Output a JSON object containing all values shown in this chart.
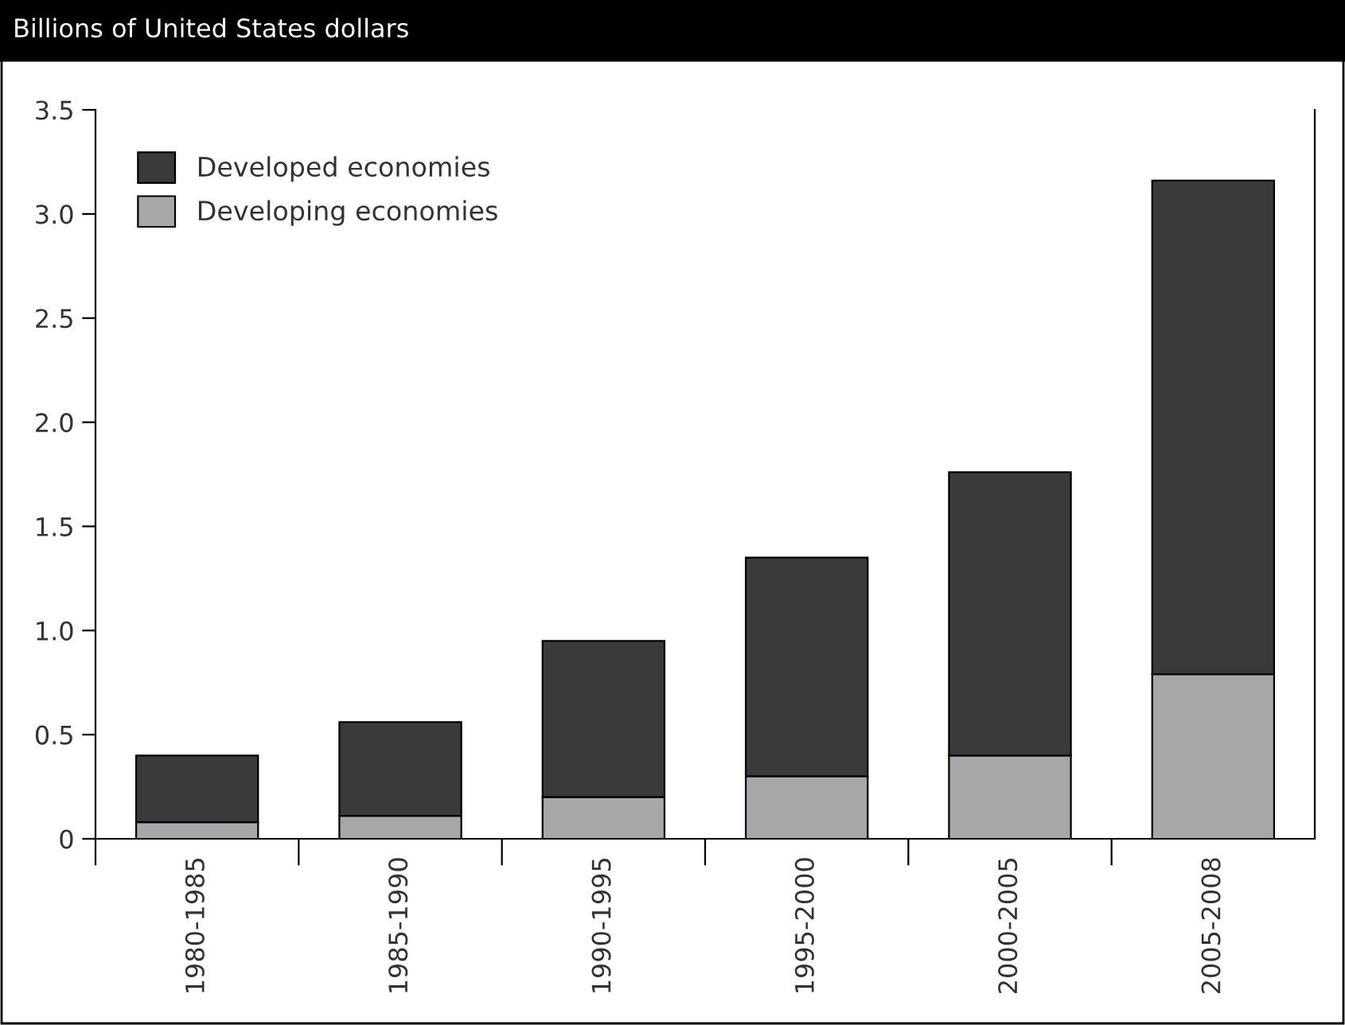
{
  "chart_data": {
    "type": "bar",
    "title": "Billions of United States dollars",
    "stacked": true,
    "categories": [
      "1980-1985",
      "1985-1990",
      "1990-1995",
      "1995-2000",
      "2000-2005",
      "2005-2008"
    ],
    "series": [
      {
        "name": "Developing economies",
        "color": "#a7a7a9",
        "values": [
          0.08,
          0.11,
          0.2,
          0.3,
          0.4,
          0.79
        ]
      },
      {
        "name": "Developed economies",
        "color": "#3a3a3a",
        "values": [
          0.32,
          0.45,
          0.75,
          1.05,
          1.36,
          2.37
        ]
      }
    ],
    "ylim": [
      0,
      3.5
    ],
    "yticks": [
      {
        "value": 0,
        "label": "0"
      },
      {
        "value": 0.5,
        "label": "0.5"
      },
      {
        "value": 1,
        "label": "1.0"
      },
      {
        "value": 1.5,
        "label": "1.5"
      },
      {
        "value": 2,
        "label": "2.0"
      },
      {
        "value": 2.5,
        "label": "2.5"
      },
      {
        "value": 3,
        "label": "3.0"
      },
      {
        "value": 3.5,
        "label": "3.5"
      }
    ],
    "grid": false,
    "legend": "top left"
  }
}
